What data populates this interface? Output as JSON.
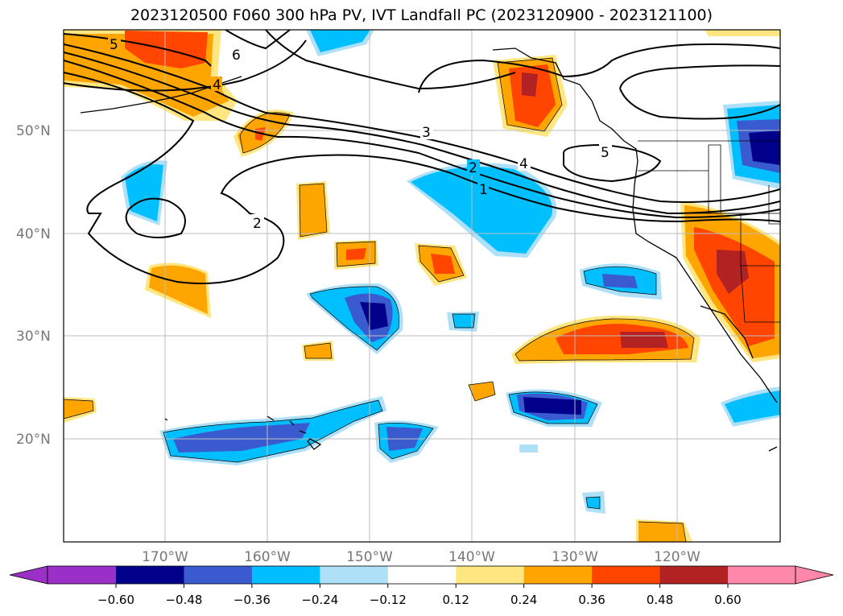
{
  "title": "2023120500 F060 300 hPa PV, IVT Landfall PC (2023120900 - 2023121100)",
  "lat_labels": [
    "50°N",
    "40°N",
    "30°N",
    "20°N"
  ],
  "lon_labels": [
    "170°W",
    "160°W",
    "150°W",
    "140°W",
    "130°W",
    "120°W"
  ],
  "contour_labels": [
    "5",
    "6",
    "4",
    "3",
    "2",
    "4",
    "1",
    "5",
    "2"
  ],
  "colorbar": {
    "ticks": [
      "−0.60",
      "−0.48",
      "−0.36",
      "−0.24",
      "−0.12",
      "0.12",
      "0.24",
      "0.36",
      "0.48",
      "0.60"
    ],
    "colors": {
      "under": "#9b30c8",
      "c1": "#00008b",
      "c2": "#3a5bd0",
      "c3": "#00bfff",
      "c4": "#aee0f8",
      "c5": "#ffffff",
      "c6": "#ffe680",
      "c7": "#ffa500",
      "c8": "#ff4500",
      "c9": "#b22222",
      "over": "#ff88aa"
    }
  }
}
